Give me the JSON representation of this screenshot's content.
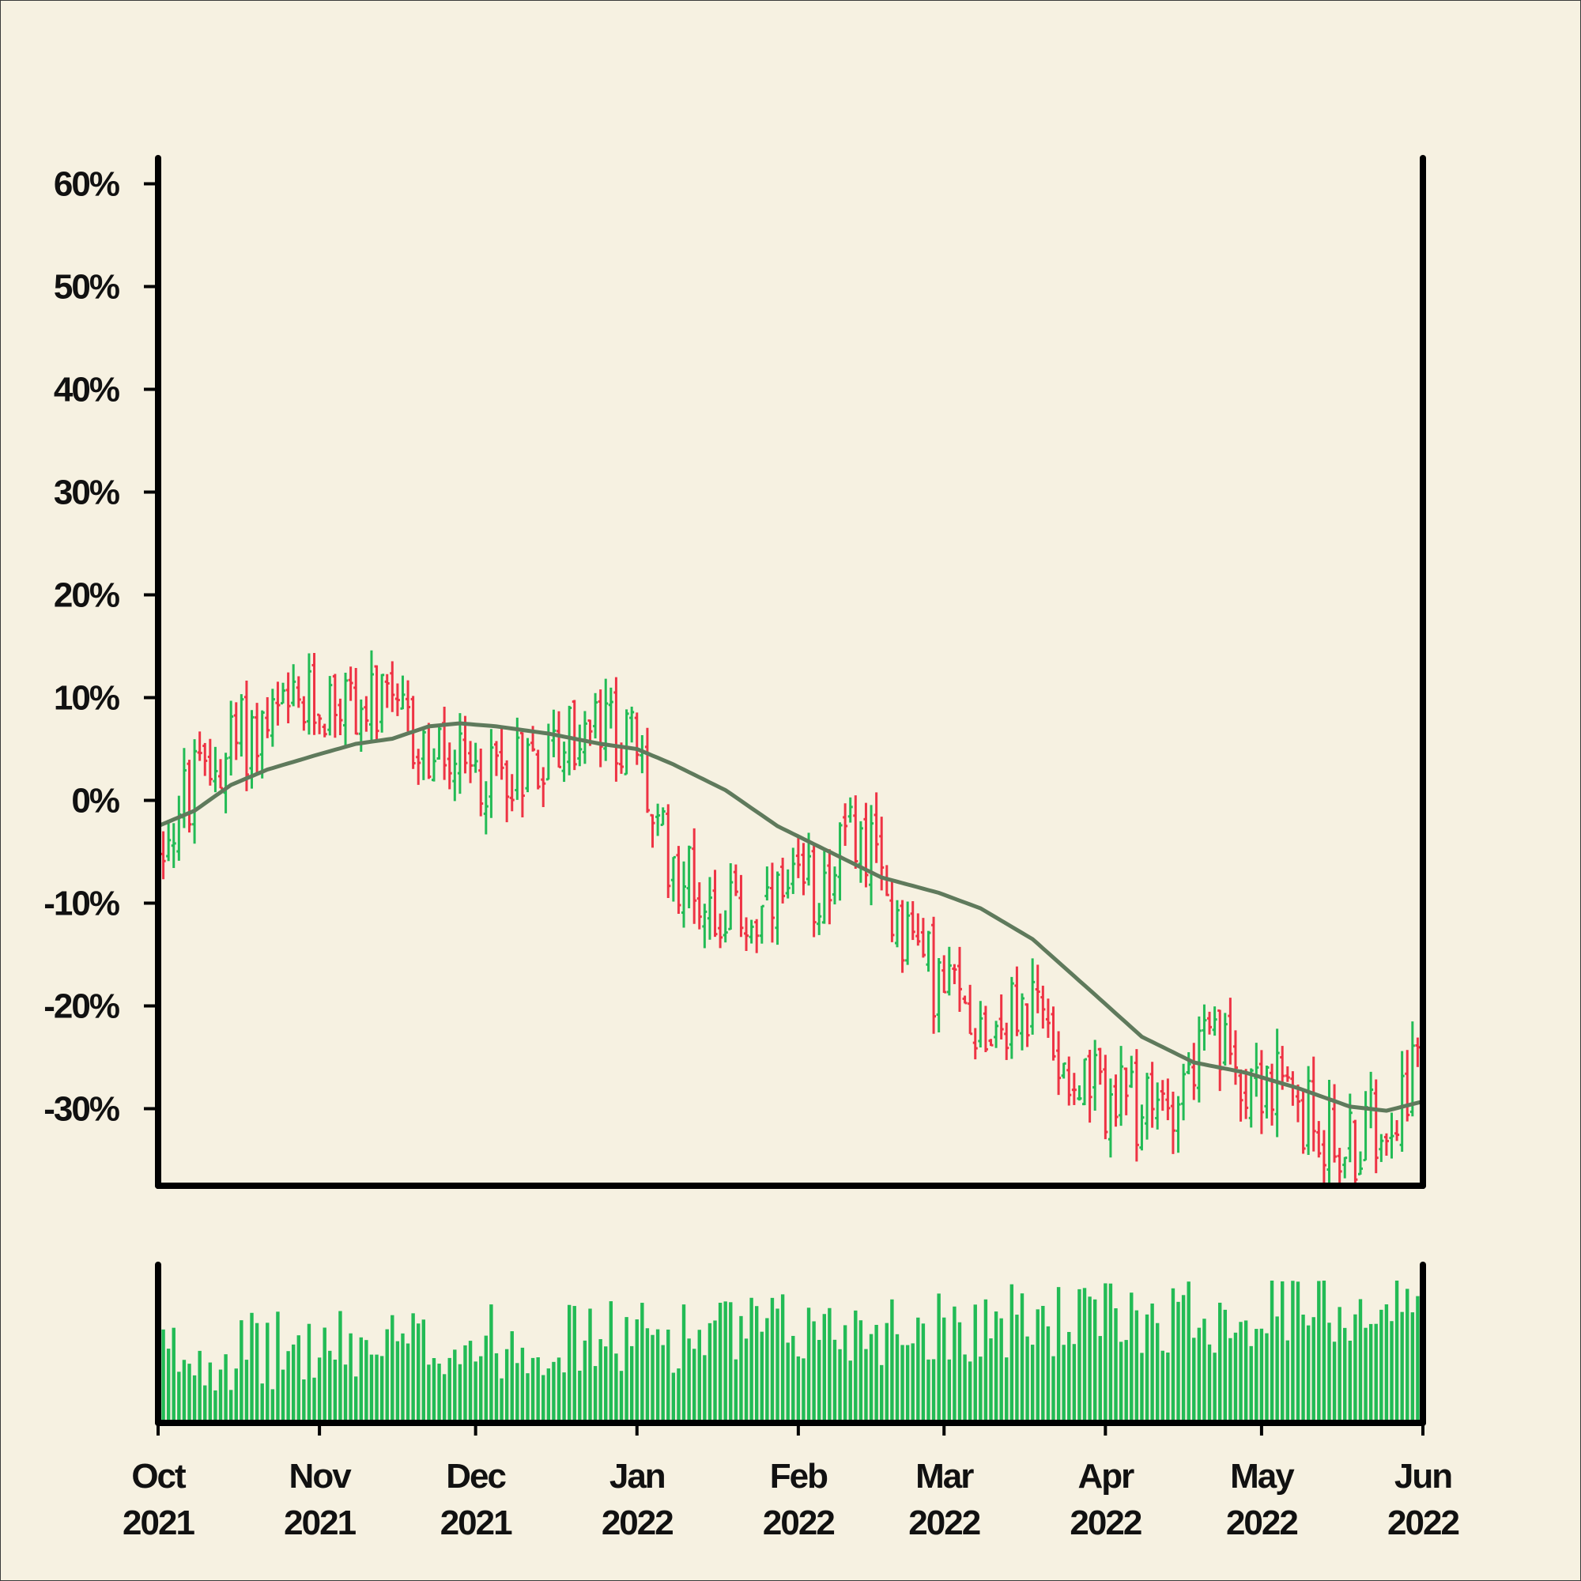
{
  "chart_data": {
    "type": "ohlc",
    "y_unit": "percent change",
    "yticks": [
      60,
      50,
      40,
      30,
      20,
      10,
      0,
      -10,
      -20,
      -30
    ],
    "yticklabels": [
      "60%",
      "50%",
      "40%",
      "30%",
      "20%",
      "10%",
      "0%",
      "-10%",
      "-20%",
      "-30%"
    ],
    "ylim": [
      -37.5,
      62.5
    ],
    "xlim": [
      "2021-10-01",
      "2022-06-01"
    ],
    "xticks": [
      "2021-10-01",
      "2021-11-01",
      "2021-12-01",
      "2022-01-01",
      "2022-02-01",
      "2022-03-01",
      "2022-04-01",
      "2022-05-01",
      "2022-06-01"
    ],
    "xticklabels": [
      [
        "Oct",
        "2021"
      ],
      [
        "Nov",
        "2021"
      ],
      [
        "Dec",
        "2021"
      ],
      [
        "Jan",
        "2022"
      ],
      [
        "Feb",
        "2022"
      ],
      [
        "Mar",
        "2022"
      ],
      [
        "Apr",
        "2022"
      ],
      [
        "May",
        "2022"
      ],
      [
        "Jun",
        "2022"
      ]
    ],
    "path_anchors": [
      [
        "2021-10-01",
        -4
      ],
      [
        "2021-10-08",
        1
      ],
      [
        "2021-10-16",
        6
      ],
      [
        "2021-10-26",
        8
      ],
      [
        "2021-11-05",
        10
      ],
      [
        "2021-11-15",
        8
      ],
      [
        "2021-11-23",
        4
      ],
      [
        "2021-11-30",
        2
      ],
      [
        "2021-12-10",
        4
      ],
      [
        "2021-12-20",
        6
      ],
      [
        "2021-12-27",
        7
      ],
      [
        "2022-01-01",
        5
      ],
      [
        "2022-01-05",
        -4
      ],
      [
        "2022-01-15",
        -10
      ],
      [
        "2022-01-25",
        -12
      ],
      [
        "2022-02-05",
        -8
      ],
      [
        "2022-02-12",
        -3
      ],
      [
        "2022-02-19",
        -10
      ],
      [
        "2022-02-28",
        -18
      ],
      [
        "2022-03-10",
        -22
      ],
      [
        "2022-03-18",
        -20
      ],
      [
        "2022-03-28",
        -28
      ],
      [
        "2022-04-10",
        -31
      ],
      [
        "2022-04-20",
        -24
      ],
      [
        "2022-05-01",
        -27
      ],
      [
        "2022-05-10",
        -31
      ],
      [
        "2022-05-18",
        -34
      ],
      [
        "2022-05-25",
        -30
      ],
      [
        "2022-06-01",
        -25
      ]
    ],
    "ma_line": [
      [
        "2021-10-01",
        -2.5
      ],
      [
        "2021-10-08",
        -1
      ],
      [
        "2021-10-15",
        1.5
      ],
      [
        "2021-10-22",
        3
      ],
      [
        "2021-11-01",
        4.5
      ],
      [
        "2021-11-08",
        5.5
      ],
      [
        "2021-11-15",
        6
      ],
      [
        "2021-11-22",
        7.2
      ],
      [
        "2021-11-28",
        7.5
      ],
      [
        "2021-12-05",
        7.2
      ],
      [
        "2021-12-15",
        6.5
      ],
      [
        "2021-12-25",
        5.5
      ],
      [
        "2022-01-01",
        5
      ],
      [
        "2022-01-08",
        3.5
      ],
      [
        "2022-01-18",
        1
      ],
      [
        "2022-01-28",
        -2.5
      ],
      [
        "2022-02-07",
        -5
      ],
      [
        "2022-02-17",
        -7.5
      ],
      [
        "2022-02-28",
        -9
      ],
      [
        "2022-03-08",
        -10.5
      ],
      [
        "2022-03-18",
        -13.5
      ],
      [
        "2022-03-28",
        -18
      ],
      [
        "2022-04-08",
        -23
      ],
      [
        "2022-04-18",
        -25.5
      ],
      [
        "2022-04-28",
        -26.5
      ],
      [
        "2022-05-08",
        -28
      ],
      [
        "2022-05-18",
        -29.8
      ],
      [
        "2022-05-25",
        -30.2
      ],
      [
        "2022-06-01",
        -29.3
      ]
    ],
    "volume_note": "relative daily volume bars, unlabeled axis",
    "colors": {
      "up": "#22bb55",
      "down": "#ee3344",
      "ma": "#5f7a5c",
      "volume": "#22bb55",
      "axis": "#000000",
      "background": "#f6f1e1"
    }
  }
}
